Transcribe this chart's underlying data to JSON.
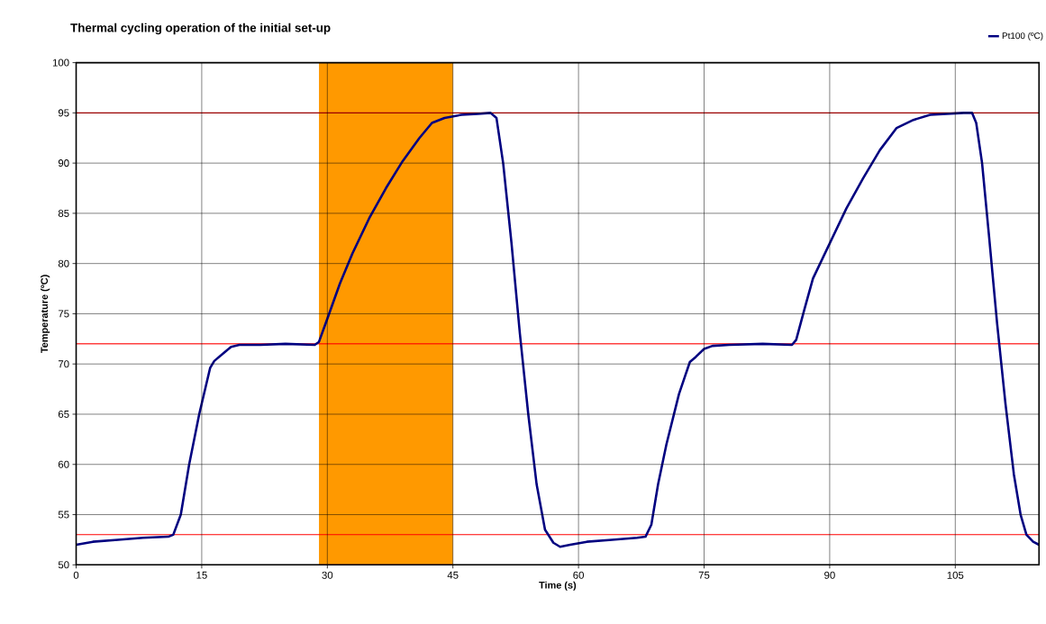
{
  "chart_data": {
    "type": "line",
    "title": "Thermal cycling operation of the initial set-up",
    "xlabel": "Time (s)",
    "ylabel": "Temperature (ºC)",
    "xlim": [
      0,
      115
    ],
    "xticks": [
      0,
      15,
      30,
      45,
      60,
      75,
      90,
      105
    ],
    "ylim": [
      50,
      100
    ],
    "yticks": [
      50,
      55,
      60,
      65,
      70,
      75,
      80,
      85,
      90,
      95,
      100
    ],
    "grid": true,
    "legend": "top right",
    "marker": "none",
    "line_style": "solid",
    "series": [
      {
        "name": "Pt100 (ºC)",
        "color": "#000080",
        "x": [
          0,
          2,
          5,
          8,
          11,
          11.6,
          12.5,
          13.5,
          14.7,
          16,
          16.5,
          17.5,
          18.5,
          19.5,
          22,
          25,
          28.5,
          29,
          30,
          31.5,
          33,
          35,
          37,
          39,
          41,
          42.5,
          44,
          46,
          48,
          49.5,
          50.2,
          51,
          52,
          53,
          54,
          55,
          56,
          57,
          57.8,
          59,
          61,
          64,
          67,
          68,
          68.7,
          69.5,
          70.5,
          72,
          73.3,
          74,
          75,
          76,
          78,
          82,
          85.5,
          86,
          87,
          88,
          90,
          92,
          94,
          96,
          98,
          100,
          102,
          104,
          106,
          107,
          107.5,
          108.2,
          109,
          110,
          111,
          112,
          112.8,
          113.5,
          114.3,
          115
        ],
        "values": [
          52.0,
          52.3,
          52.5,
          52.7,
          52.8,
          53.0,
          55,
          60,
          65,
          69.6,
          70.3,
          71.0,
          71.7,
          71.9,
          71.9,
          72.0,
          71.9,
          72.2,
          74.5,
          78,
          81,
          84.5,
          87.5,
          90.2,
          92.5,
          94,
          94.5,
          94.8,
          94.9,
          95.0,
          94.5,
          90,
          82,
          73,
          65,
          58,
          53.5,
          52.2,
          51.8,
          52.0,
          52.3,
          52.5,
          52.7,
          52.8,
          54,
          58,
          62,
          67,
          70.2,
          70.7,
          71.5,
          71.8,
          71.9,
          72.0,
          71.9,
          72.4,
          75.5,
          78.5,
          82,
          85.5,
          88.5,
          91.3,
          93.5,
          94.3,
          94.8,
          94.9,
          95.0,
          95.0,
          94,
          90,
          83,
          74,
          66,
          59,
          55,
          53,
          52.3,
          52.0
        ]
      }
    ],
    "ref_lines": [
      {
        "axis": "y",
        "value": 95,
        "color": "#ff0000"
      },
      {
        "axis": "y",
        "value": 72,
        "color": "#ff0000"
      },
      {
        "axis": "y",
        "value": 53,
        "color": "#ff0000"
      }
    ],
    "bands": [
      {
        "axis": "x",
        "from": 29,
        "to": 45,
        "color": "#ff9900"
      }
    ]
  }
}
